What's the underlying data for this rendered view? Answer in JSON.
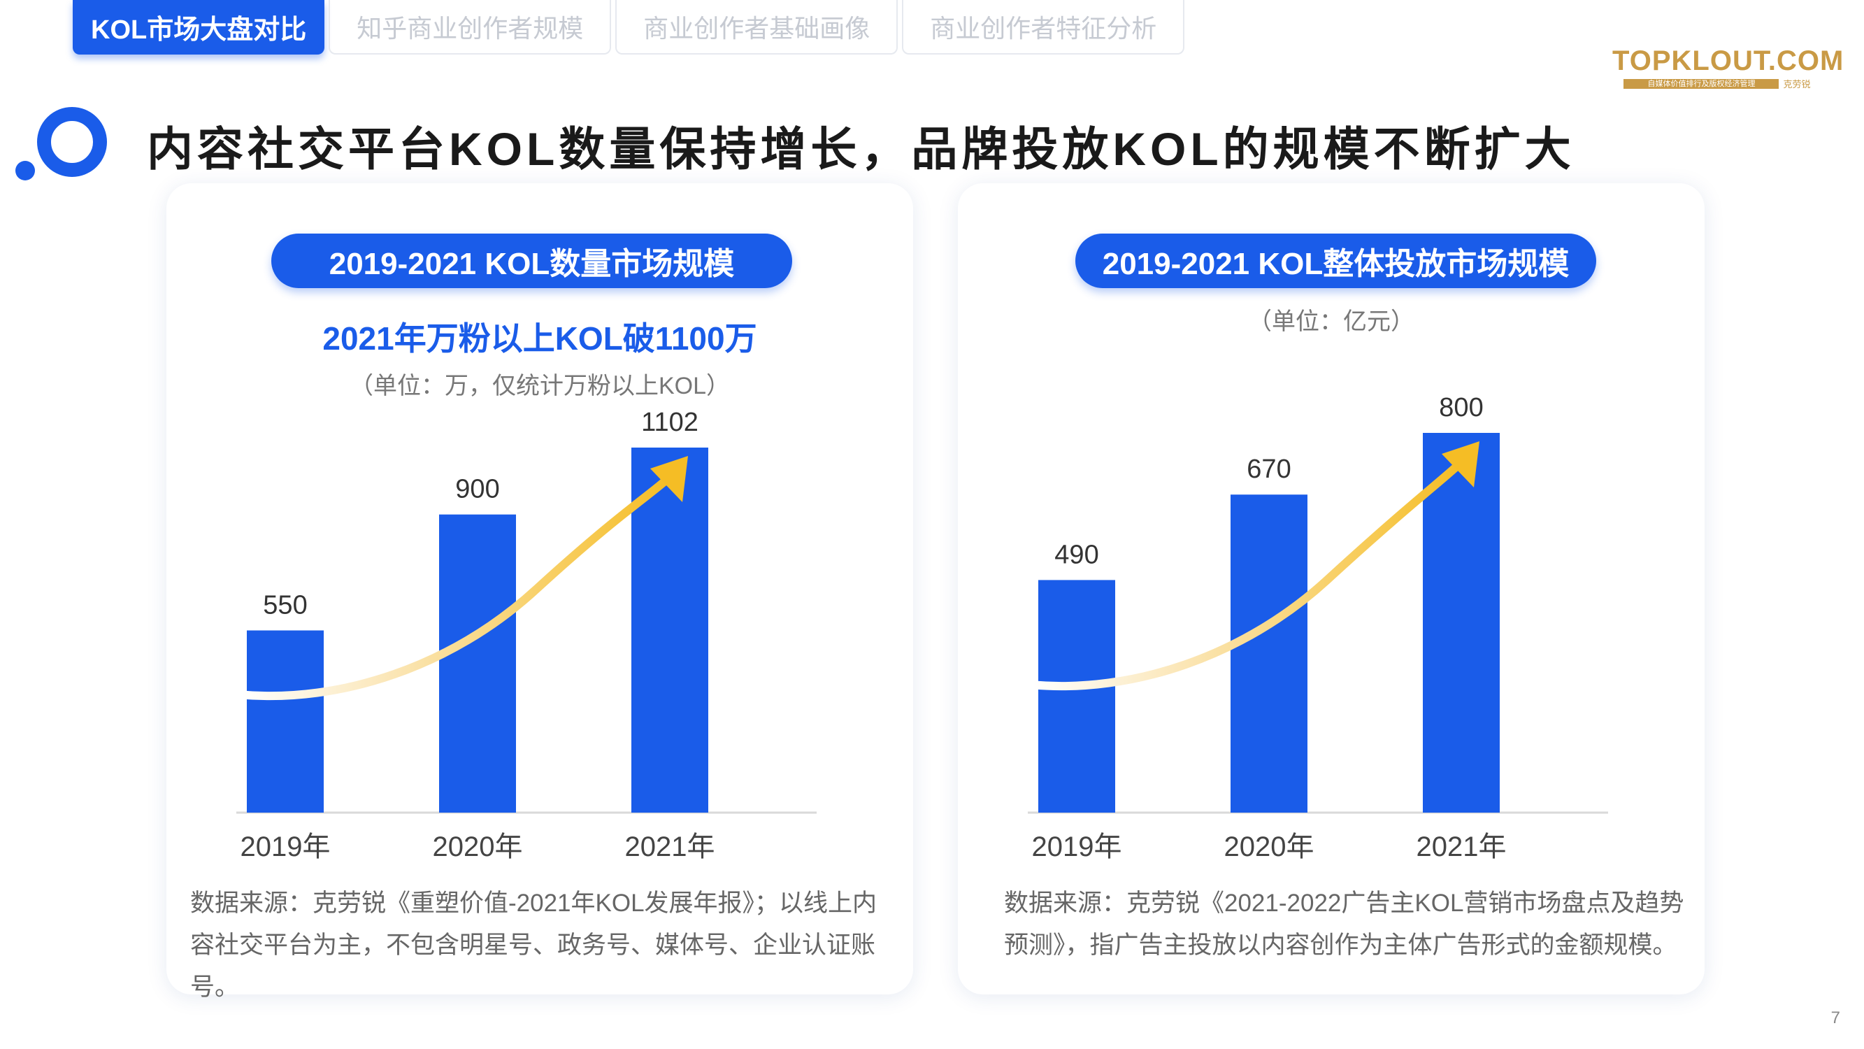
{
  "tabs": [
    {
      "label": "KOL市场大盘对比",
      "active": true
    },
    {
      "label": "知乎商业创作者规模",
      "active": false
    },
    {
      "label": "商业创作者基础画像",
      "active": false
    },
    {
      "label": "商业创作者特征分析",
      "active": false
    }
  ],
  "logo": {
    "main": "TOPKLOUT.COM",
    "tagline": "自媒体价值排行及版权经济管理",
    "cn": "克劳锐"
  },
  "headline": "内容社交平台KOL数量保持增长，品牌投放KOL的规模不断扩大",
  "left_card": {
    "pill": "2019-2021 KOL数量市场规模",
    "subhead": "2021年万粉以上KOL破1100万",
    "unit": "（单位：万，仅统计万粉以上KOL）",
    "source": "数据来源：克劳锐《重塑价值-2021年KOL发展年报》；以线上内容社交平台为主，不包含明星号、政务号、媒体号、企业认证账号。"
  },
  "right_card": {
    "pill": "2019-2021 KOL整体投放市场规模",
    "unit": "（单位：亿元）",
    "source": "数据来源：克劳锐《2021-2022广告主KOL营销市场盘点及趋势预测》，指广告主投放以内容创作为主体广告形式的金额规模。"
  },
  "page_number": "7",
  "colors": {
    "bar": "#1a5ce9",
    "arrow": "#f5bd25",
    "axis": "#d9d9d9"
  },
  "chart_data": [
    {
      "type": "bar",
      "title": "2019-2021 KOL数量市场规模",
      "categories": [
        "2019年",
        "2020年",
        "2021年"
      ],
      "values": [
        550,
        900,
        1102
      ],
      "ylim": [
        0,
        1102
      ],
      "grid": false,
      "annotation": "upward trend arrow"
    },
    {
      "type": "bar",
      "title": "2019-2021 KOL整体投放市场规模",
      "categories": [
        "2019年",
        "2020年",
        "2021年"
      ],
      "values": [
        490,
        670,
        800
      ],
      "ylim": [
        0,
        800
      ],
      "grid": false,
      "annotation": "upward trend arrow"
    }
  ]
}
